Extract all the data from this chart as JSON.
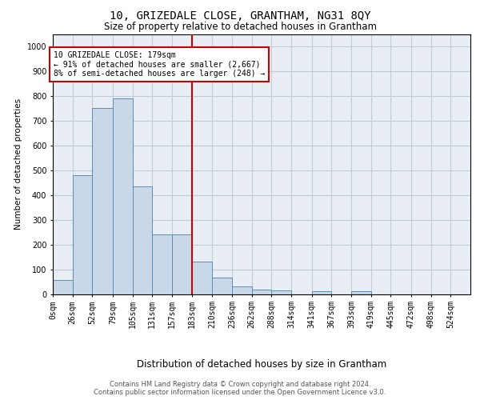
{
  "title": "10, GRIZEDALE CLOSE, GRANTHAM, NG31 8QY",
  "subtitle": "Size of property relative to detached houses in Grantham",
  "xlabel": "Distribution of detached houses by size in Grantham",
  "ylabel": "Number of detached properties",
  "footer_line1": "Contains HM Land Registry data © Crown copyright and database right 2024.",
  "footer_line2": "Contains public sector information licensed under the Open Government Licence v3.0.",
  "annotation_line1": "10 GRIZEDALE CLOSE: 179sqm",
  "annotation_line2": "← 91% of detached houses are smaller (2,667)",
  "annotation_line3": "8% of semi-detached houses are larger (248) →",
  "vline_x": 183,
  "bar_categories": [
    "0sqm",
    "26sqm",
    "52sqm",
    "79sqm",
    "105sqm",
    "131sqm",
    "157sqm",
    "183sqm",
    "210sqm",
    "236sqm",
    "262sqm",
    "288sqm",
    "314sqm",
    "341sqm",
    "367sqm",
    "393sqm",
    "419sqm",
    "445sqm",
    "472sqm",
    "498sqm",
    "524sqm"
  ],
  "bar_left_edges": [
    0,
    26,
    52,
    79,
    105,
    131,
    157,
    183,
    210,
    236,
    262,
    288,
    314,
    341,
    367,
    393,
    419,
    445,
    472,
    498,
    524
  ],
  "bar_heights": [
    55,
    480,
    750,
    790,
    435,
    240,
    240,
    130,
    65,
    30,
    18,
    15,
    0,
    12,
    0,
    12,
    0,
    0,
    0,
    0,
    0
  ],
  "bar_color": "#c8d8e8",
  "bar_edgecolor": "#5b8db8",
  "vline_color": "#cc0000",
  "annotation_box_edgecolor": "#cc0000",
  "annotation_text_color": "#000000",
  "grid_color": "#c0ccd8",
  "background_color": "#e8eef4",
  "ylim": [
    0,
    1050
  ],
  "xlim_max": 550,
  "yticks": [
    0,
    100,
    200,
    300,
    400,
    500,
    600,
    700,
    800,
    900,
    1000
  ],
  "title_fontsize": 10,
  "subtitle_fontsize": 8.5,
  "ylabel_fontsize": 7.5,
  "xlabel_fontsize": 8.5,
  "tick_fontsize": 7,
  "annotation_fontsize": 7,
  "footer_fontsize": 6
}
